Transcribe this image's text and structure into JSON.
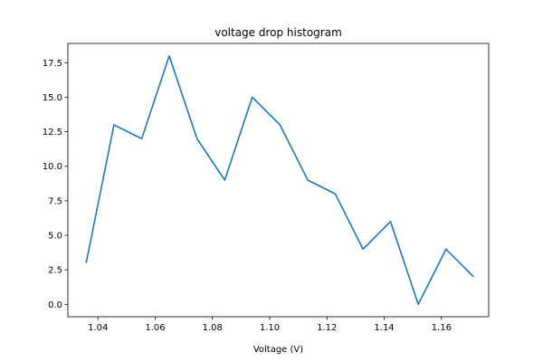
{
  "chart_data": {
    "type": "line",
    "title": "voltage drop histogram",
    "xlabel": "Voltage (V)",
    "ylabel": "",
    "xlim": [
      1.0295,
      1.1765
    ],
    "ylim": [
      -0.9,
      18.9
    ],
    "xticks": [
      1.04,
      1.06,
      1.08,
      1.1,
      1.12,
      1.14,
      1.16
    ],
    "xtick_labels": [
      "1.04",
      "1.06",
      "1.08",
      "1.10",
      "1.12",
      "1.14",
      "1.16"
    ],
    "yticks": [
      0.0,
      2.5,
      5.0,
      7.5,
      10.0,
      12.5,
      15.0,
      17.5
    ],
    "ytick_labels": [
      "0.0",
      "2.5",
      "5.0",
      "7.5",
      "10.0",
      "12.5",
      "15.0",
      "17.5"
    ],
    "grid": false,
    "series": [
      {
        "color": "#1f77b4",
        "x": [
          1.0359,
          1.0456,
          1.0553,
          1.0649,
          1.0746,
          1.0843,
          1.0939,
          1.1036,
          1.1133,
          1.1229,
          1.1326,
          1.1422,
          1.1519,
          1.1616,
          1.1712
        ],
        "y": [
          3,
          13,
          12,
          18,
          12,
          9,
          15,
          13,
          9,
          8,
          4,
          6,
          0,
          4,
          2
        ]
      }
    ]
  }
}
